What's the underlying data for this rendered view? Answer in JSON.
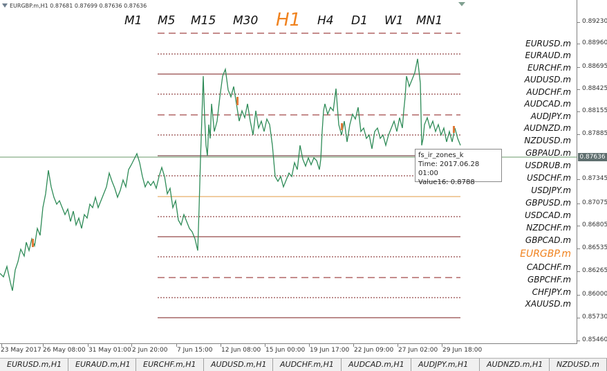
{
  "header": {
    "symbol_info": "EURGBP.m,H1  0.87681 0.87699 0.87636 0.87636"
  },
  "timeframes": [
    {
      "label": "M1",
      "active": false
    },
    {
      "label": "M5",
      "active": false
    },
    {
      "label": "M15",
      "active": false
    },
    {
      "label": "M30",
      "active": false
    },
    {
      "label": "H1",
      "active": true
    },
    {
      "label": "H4",
      "active": false
    },
    {
      "label": "D1",
      "active": false
    },
    {
      "label": "W1",
      "active": false
    },
    {
      "label": "MN1",
      "active": false
    }
  ],
  "symbols": [
    {
      "label": "EURUSD.m",
      "active": false
    },
    {
      "label": "EURAUD.m",
      "active": false
    },
    {
      "label": "EURCHF.m",
      "active": false
    },
    {
      "label": "AUDUSD.m",
      "active": false
    },
    {
      "label": "AUDCHF.m",
      "active": false
    },
    {
      "label": "AUDCAD.m",
      "active": false
    },
    {
      "label": "AUDJPY.m",
      "active": false
    },
    {
      "label": "AUDNZD.m",
      "active": false
    },
    {
      "label": "NZDUSD.m",
      "active": false
    },
    {
      "label": "GBPAUD.m",
      "active": false
    },
    {
      "label": "USDRUB.m",
      "active": false
    },
    {
      "label": "USDCHF.m",
      "active": false
    },
    {
      "label": "USDJPY.m",
      "active": false
    },
    {
      "label": "GBPUSD.m",
      "active": false
    },
    {
      "label": "USDCAD.m",
      "active": false
    },
    {
      "label": "NZDCHF.m",
      "active": false
    },
    {
      "label": "GBPCAD.m",
      "active": false
    },
    {
      "label": "EURGBP.m",
      "active": true
    },
    {
      "label": "CADCHF.m",
      "active": false
    },
    {
      "label": "GBPCHF.m",
      "active": false
    },
    {
      "label": "CHFJPY.m",
      "active": false
    },
    {
      "label": "XAUUSD.m",
      "active": false
    }
  ],
  "price_axis": {
    "labels": [
      "0.89230",
      "0.88960",
      "0.88695",
      "0.88425",
      "0.88155",
      "0.87885",
      "0.87636",
      "0.87345",
      "0.87075",
      "0.86805",
      "0.86535",
      "0.86265",
      "0.86000",
      "0.85730",
      "0.85460"
    ],
    "current_price": "0.87636"
  },
  "time_axis": {
    "labels": [
      "23 May 2017",
      "26 May 08:00",
      "31 May 01:00",
      "2 Jun 20:00",
      "7 Jun 15:00",
      "12 Jun 08:00",
      "15 Jun 00:00",
      "19 Jun 17:00",
      "22 Jun 09:00",
      "27 Jun 02:00",
      "29 Jun 18:00"
    ]
  },
  "tooltip": {
    "line1": "fs_ir_zones_k",
    "line2": "Time: 2017.06.28 01:00",
    "line3": "Value16: 0.8788"
  },
  "tabs": [
    {
      "label": "EURUSD.m,H1",
      "active": false
    },
    {
      "label": "EURAUD.m,H1",
      "active": false
    },
    {
      "label": "EURCHF.m,H1",
      "active": false
    },
    {
      "label": "AUDUSD.m,H1",
      "active": false
    },
    {
      "label": "AUDCHF.m,H1",
      "active": false
    },
    {
      "label": "AUDCAD.m,H1",
      "active": false
    },
    {
      "label": "AUDJPY.m,H1",
      "active": false
    },
    {
      "label": "AUDNZD.m,H1",
      "active": false
    },
    {
      "label": "NZDUSD.m",
      "active": false
    }
  ],
  "colors": {
    "price_line": "#2e8b57",
    "zone_solid": "#7a1a1a",
    "zone_dashed": "#8b1a1a",
    "zone_dotted": "#7a1a1a",
    "mid_level": "#e09a40",
    "current_price_line": "#6a9a6a",
    "accent": "#f0821e"
  }
}
